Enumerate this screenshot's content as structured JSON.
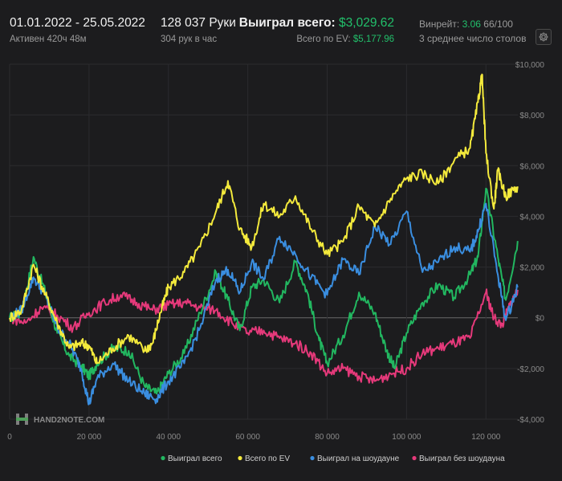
{
  "header": {
    "date_range": "01.01.2022 - 25.05.2022",
    "active": "Активен 420ч 48м",
    "hands": "128 037 Руки",
    "hands_per_hour": "304 рук в час",
    "won_label": "Выиграл всего:",
    "won_value": "$3,029.62",
    "ev_label": "Всего по EV:",
    "ev_value": "$5,177.96",
    "winrate_label": "Винрейт:",
    "winrate_value": "3.06",
    "winrate_rest": "66/100",
    "tables": "3 среднее число столов"
  },
  "watermark": "HAND2NOTE.COM",
  "colors": {
    "background": "#1c1c1e",
    "won": "#22b760",
    "ev": "#f4ea3c",
    "showdown": "#3a8ee0",
    "non_showdown": "#e5397a",
    "accent_green": "#22c06b"
  },
  "chart_data": {
    "type": "line",
    "x_ticks": [
      0,
      20000,
      40000,
      60000,
      80000,
      100000,
      120000
    ],
    "x_tick_labels": [
      "0",
      "20 000",
      "40 000",
      "60 000",
      "80 000",
      "100 000",
      "120 000"
    ],
    "y_ticks": [
      -4000,
      -2000,
      0,
      2000,
      4000,
      6000,
      8000,
      10000
    ],
    "y_tick_labels": [
      "-$4,000",
      "-$2,000",
      "$0",
      "$2,000",
      "$4,000",
      "$6,000",
      "$8,000",
      "$10,000"
    ],
    "xlim": [
      0,
      128037
    ],
    "ylim": [
      -4000,
      10000
    ],
    "legend_position": "bottom-right",
    "series": [
      {
        "name": "Выиграл всего",
        "x": [
          0,
          3000,
          6000,
          9000,
          12000,
          15000,
          18000,
          20000,
          22000,
          26000,
          30000,
          34000,
          37000,
          40000,
          44000,
          48000,
          52000,
          55000,
          58000,
          61000,
          64000,
          68000,
          72000,
          75000,
          78000,
          80000,
          84000,
          88000,
          92000,
          95000,
          97000,
          100000,
          104000,
          108000,
          112000,
          116000,
          118000,
          120000,
          123000,
          125000,
          128000
        ],
        "y": [
          0,
          200,
          2400,
          1000,
          -600,
          -1500,
          -1900,
          -2300,
          -1800,
          -1200,
          -1300,
          -2700,
          -3000,
          -2200,
          -1400,
          200,
          1800,
          700,
          -500,
          1200,
          1500,
          600,
          2200,
          1000,
          -900,
          -1800,
          -700,
          1000,
          200,
          -1300,
          -2000,
          -600,
          600,
          1300,
          800,
          1700,
          2400,
          5100,
          2400,
          700,
          3030
        ]
      },
      {
        "name": "Всего по EV",
        "x": [
          0,
          3000,
          6000,
          9000,
          12000,
          15000,
          18000,
          20000,
          22000,
          26000,
          30000,
          34000,
          36000,
          38000,
          40000,
          44000,
          48000,
          52000,
          55000,
          58000,
          61000,
          64000,
          68000,
          72000,
          76000,
          80000,
          84000,
          88000,
          92000,
          96000,
          100000,
          104000,
          108000,
          112000,
          116000,
          118000,
          119000,
          120000,
          122000,
          123000,
          125000,
          128000
        ],
        "y": [
          0,
          300,
          2100,
          900,
          -200,
          -1200,
          -1000,
          -1100,
          -1800,
          -1200,
          -700,
          -1300,
          -1000,
          200,
          1200,
          1800,
          2800,
          4200,
          5400,
          3500,
          2800,
          4500,
          4000,
          4800,
          3500,
          2500,
          3000,
          4400,
          3600,
          4700,
          5500,
          5700,
          5300,
          6200,
          6700,
          8500,
          9600,
          6500,
          4300,
          5800,
          4800,
          5180
        ]
      },
      {
        "name": "Выиграл на шоудауне",
        "x": [
          0,
          3000,
          6000,
          9000,
          12000,
          15000,
          18000,
          20000,
          22000,
          26000,
          30000,
          34000,
          37000,
          40000,
          44000,
          48000,
          52000,
          55000,
          58000,
          61000,
          64000,
          68000,
          72000,
          76000,
          80000,
          84000,
          88000,
          92000,
          96000,
          100000,
          104000,
          108000,
          112000,
          116000,
          118000,
          120000,
          123000,
          125000,
          128000
        ],
        "y": [
          0,
          300,
          1600,
          900,
          -400,
          -1000,
          -2000,
          -3400,
          -2400,
          -1800,
          -2500,
          -3000,
          -3200,
          -2500,
          -1800,
          -400,
          1500,
          1900,
          1000,
          2200,
          1500,
          3200,
          2500,
          1600,
          900,
          2300,
          1700,
          3600,
          2900,
          4200,
          1800,
          2200,
          2800,
          2600,
          3400,
          4500,
          1700,
          -100,
          1200
        ]
      },
      {
        "name": "Выиграл без шоудауна",
        "x": [
          0,
          4000,
          8000,
          12000,
          16000,
          20000,
          24000,
          28000,
          32000,
          36000,
          40000,
          44000,
          48000,
          52000,
          56000,
          60000,
          64000,
          68000,
          72000,
          76000,
          80000,
          84000,
          88000,
          92000,
          96000,
          100000,
          104000,
          108000,
          112000,
          116000,
          120000,
          122000,
          124000,
          126000,
          128000
        ],
        "y": [
          0,
          -200,
          400,
          100,
          -400,
          200,
          600,
          900,
          600,
          300,
          500,
          600,
          400,
          300,
          -200,
          -600,
          -500,
          -800,
          -1000,
          -1400,
          -2200,
          -2000,
          -2300,
          -2500,
          -2200,
          -2000,
          -1400,
          -1200,
          -1000,
          -800,
          1000,
          0,
          -300,
          500,
          1100
        ]
      }
    ]
  },
  "legend": [
    {
      "label": "Выиграл всего",
      "color": "#22b760"
    },
    {
      "label": "Всего по EV",
      "color": "#f4ea3c"
    },
    {
      "label": "Выиграл на шоудауне",
      "color": "#3a8ee0"
    },
    {
      "label": "Выиграл без шоудауна",
      "color": "#e5397a"
    }
  ]
}
